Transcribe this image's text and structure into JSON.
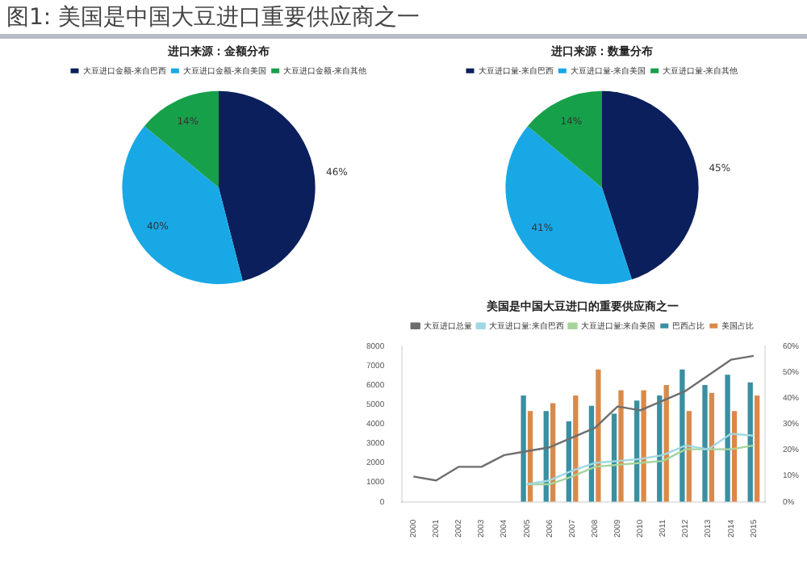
{
  "chart_data": [
    {
      "type": "pie",
      "title": "进口来源：金额分布",
      "annotations": [
        "图1: 美国是中国大豆进口重要供应商之一"
      ],
      "categories": [
        "大豆进口金额-来自巴西",
        "大豆进口金额-来自美国",
        "大豆进口金额-来自其他"
      ],
      "values": [
        46,
        40,
        14
      ],
      "value_labels": [
        "46%",
        "40%",
        "14%"
      ],
      "colors": [
        "#0b1f5c",
        "#19a8e6",
        "#17a04a"
      ],
      "legend": "top"
    },
    {
      "type": "pie",
      "title": "进口来源：数量分布",
      "categories": [
        "大豆进口量-来自巴西",
        "大豆进口量-来自美国",
        "大豆进口量-来自其他"
      ],
      "values": [
        45,
        41,
        14
      ],
      "value_labels": [
        "45%",
        "41%",
        "14%"
      ],
      "colors": [
        "#0b1f5c",
        "#19a8e6",
        "#17a04a"
      ],
      "legend": "top"
    },
    {
      "type": "bar",
      "title": "美国是中国大豆进口的重要供应商之一",
      "categories": [
        "2000",
        "2001",
        "2002",
        "2003",
        "2004",
        "2005",
        "2006",
        "2007",
        "2008",
        "2009",
        "2010",
        "2011",
        "2012",
        "2013",
        "2014",
        "2015"
      ],
      "series": [
        {
          "name": "巴西占比",
          "type": "bar",
          "axis": "y2",
          "color": "#3a8fa0",
          "values": [
            null,
            null,
            null,
            null,
            null,
            41,
            35,
            31,
            37,
            34,
            39,
            41,
            51,
            45,
            49,
            46
          ]
        },
        {
          "name": "美国占比",
          "type": "bar",
          "axis": "y2",
          "color": "#d98a4a",
          "values": [
            null,
            null,
            null,
            null,
            null,
            35,
            38,
            41,
            51,
            43,
            43,
            45,
            35,
            42,
            35,
            41
          ]
        },
        {
          "name": "大豆进口总量",
          "type": "line",
          "axis": "y",
          "color": "#6e6e6e",
          "values": [
            1300,
            1100,
            1800,
            1800,
            2400,
            2600,
            2800,
            3300,
            3800,
            4900,
            4700,
            5200,
            5700,
            6500,
            7300,
            7500
          ]
        },
        {
          "name": "大豆进口量:来自巴西",
          "type": "line",
          "axis": "y",
          "color": "#9fd8e2",
          "values": [
            null,
            null,
            null,
            null,
            null,
            900,
            1100,
            1600,
            2000,
            2100,
            2200,
            2400,
            2900,
            2700,
            3500,
            3400
          ]
        },
        {
          "name": "大豆进口量:来自美国",
          "type": "line",
          "axis": "y",
          "color": "#a6d49c",
          "values": [
            null,
            null,
            null,
            null,
            null,
            900,
            900,
            1300,
            1800,
            1900,
            2000,
            2100,
            2700,
            2700,
            2700,
            2900
          ]
        }
      ],
      "ylim": [
        0,
        8000
      ],
      "yticks": [
        0,
        1000,
        2000,
        3000,
        4000,
        5000,
        6000,
        7000,
        8000
      ],
      "y2lim": [
        0,
        60
      ],
      "y2ticks": [
        {
          "value": 0,
          "label": "0%"
        },
        {
          "value": 10,
          "label": "10%"
        },
        {
          "value": 20,
          "label": "20%"
        },
        {
          "value": 30,
          "label": "30%"
        },
        {
          "value": 40,
          "label": "40%"
        },
        {
          "value": 50,
          "label": "50%"
        },
        {
          "value": 60,
          "label": "60%"
        }
      ],
      "grid": false,
      "legend": "top",
      "marker": "none",
      "line_style": "solid"
    }
  ]
}
